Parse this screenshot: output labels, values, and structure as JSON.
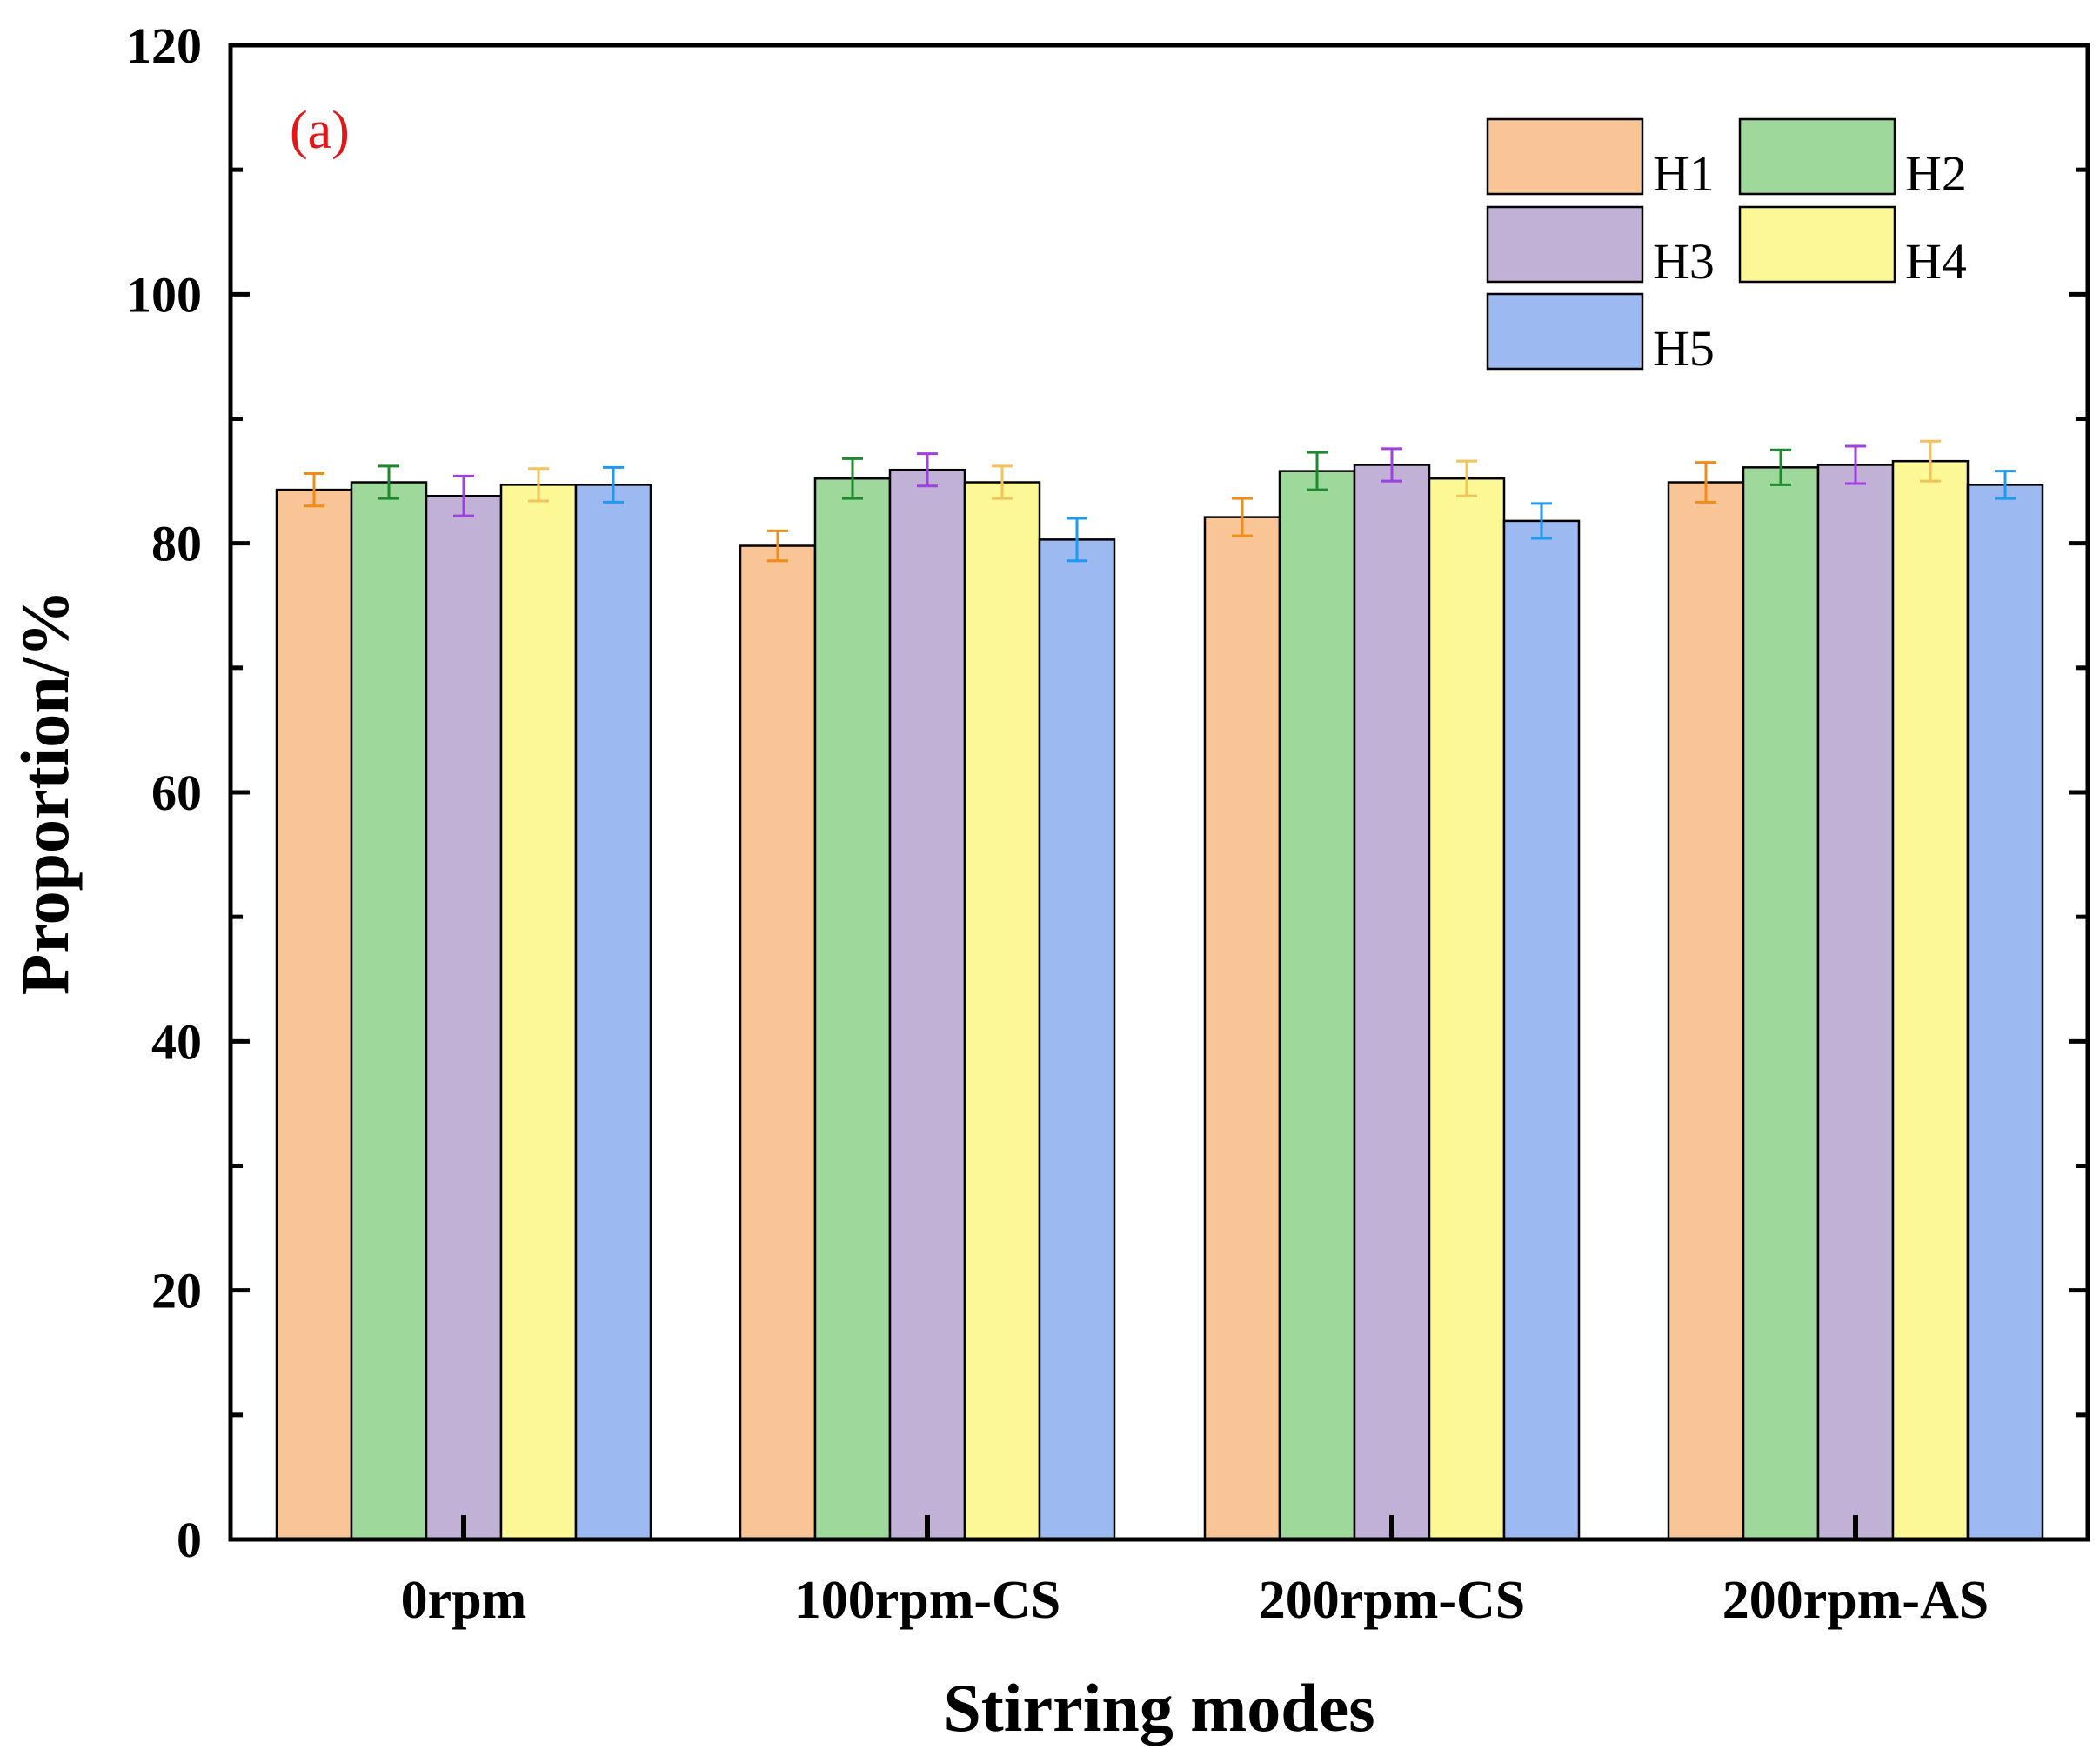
{
  "chart_data": {
    "type": "bar",
    "panel_label": "(a)",
    "xlabel": "Stirring modes",
    "ylabel": "Proportion/%",
    "ylim": [
      0,
      120
    ],
    "yticks": [
      0,
      20,
      40,
      60,
      80,
      100,
      120
    ],
    "categories": [
      "0rpm",
      "100rpm-CS",
      "200rpm-CS",
      "200rpm-AS"
    ],
    "series": [
      {
        "name": "H1",
        "color": "#F9C596",
        "error_color": "#F28C18",
        "values": [
          84.3,
          79.8,
          82.1,
          84.9
        ],
        "errors": [
          1.3,
          1.2,
          1.5,
          1.6
        ]
      },
      {
        "name": "H2",
        "color": "#9ED89A",
        "error_color": "#1E8A2E",
        "values": [
          84.9,
          85.2,
          85.8,
          86.1
        ],
        "errors": [
          1.3,
          1.6,
          1.5,
          1.4
        ]
      },
      {
        "name": "H3",
        "color": "#C1B1D6",
        "error_color": "#A040E0",
        "values": [
          83.8,
          85.9,
          86.3,
          86.3
        ],
        "errors": [
          1.6,
          1.3,
          1.3,
          1.5
        ]
      },
      {
        "name": "H4",
        "color": "#FDF896",
        "error_color": "#F2C35A",
        "values": [
          84.7,
          84.9,
          85.2,
          86.6
        ],
        "errors": [
          1.3,
          1.3,
          1.4,
          1.6
        ]
      },
      {
        "name": "H5",
        "color": "#9CB9F1",
        "error_color": "#1E9AF0",
        "values": [
          84.7,
          80.3,
          81.8,
          84.7
        ],
        "errors": [
          1.4,
          1.7,
          1.4,
          1.1
        ]
      }
    ],
    "legend": {
      "position": "top-right",
      "columns": 2
    },
    "grid": false
  }
}
